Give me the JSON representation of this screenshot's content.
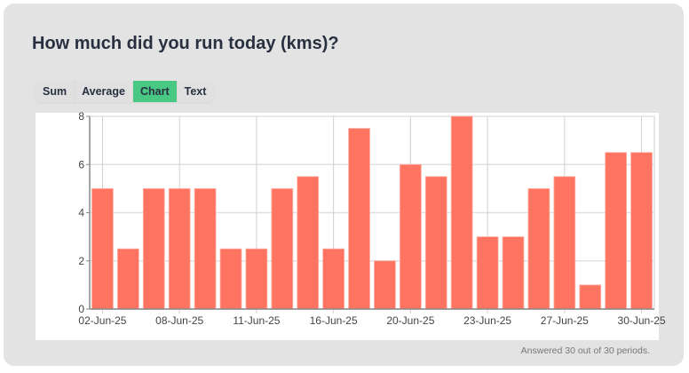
{
  "title": "How much did you run today (kms)?",
  "tabs": [
    {
      "label": "Sum",
      "active": false
    },
    {
      "label": "Average",
      "active": false
    },
    {
      "label": "Chart",
      "active": true
    },
    {
      "label": "Text",
      "active": false
    }
  ],
  "footer": "Answered 30 out of 30 periods.",
  "colors": {
    "bar": "#ff7461",
    "active_tab": "#48c883",
    "card": "#e3e3e3"
  },
  "chart_data": {
    "type": "bar",
    "values": [
      5,
      2.5,
      5,
      5,
      5,
      2.5,
      2.5,
      5,
      5.5,
      2.5,
      7.5,
      2,
      6,
      5.5,
      8,
      3,
      3,
      5,
      5.5,
      1,
      6.5,
      6.5
    ],
    "x_tick_labels": [
      {
        "index": 0,
        "label": "02-Jun-25"
      },
      {
        "index": 3,
        "label": "08-Jun-25"
      },
      {
        "index": 6,
        "label": "11-Jun-25"
      },
      {
        "index": 9,
        "label": "16-Jun-25"
      },
      {
        "index": 12,
        "label": "20-Jun-25"
      },
      {
        "index": 15,
        "label": "23-Jun-25"
      },
      {
        "index": 18,
        "label": "27-Jun-25"
      },
      {
        "index": 21,
        "label": "30-Jun-25"
      }
    ],
    "y_ticks": [
      0,
      2,
      4,
      6,
      8
    ],
    "ylim": [
      0,
      8
    ],
    "grid": true,
    "title": "",
    "xlabel": "",
    "ylabel": ""
  }
}
